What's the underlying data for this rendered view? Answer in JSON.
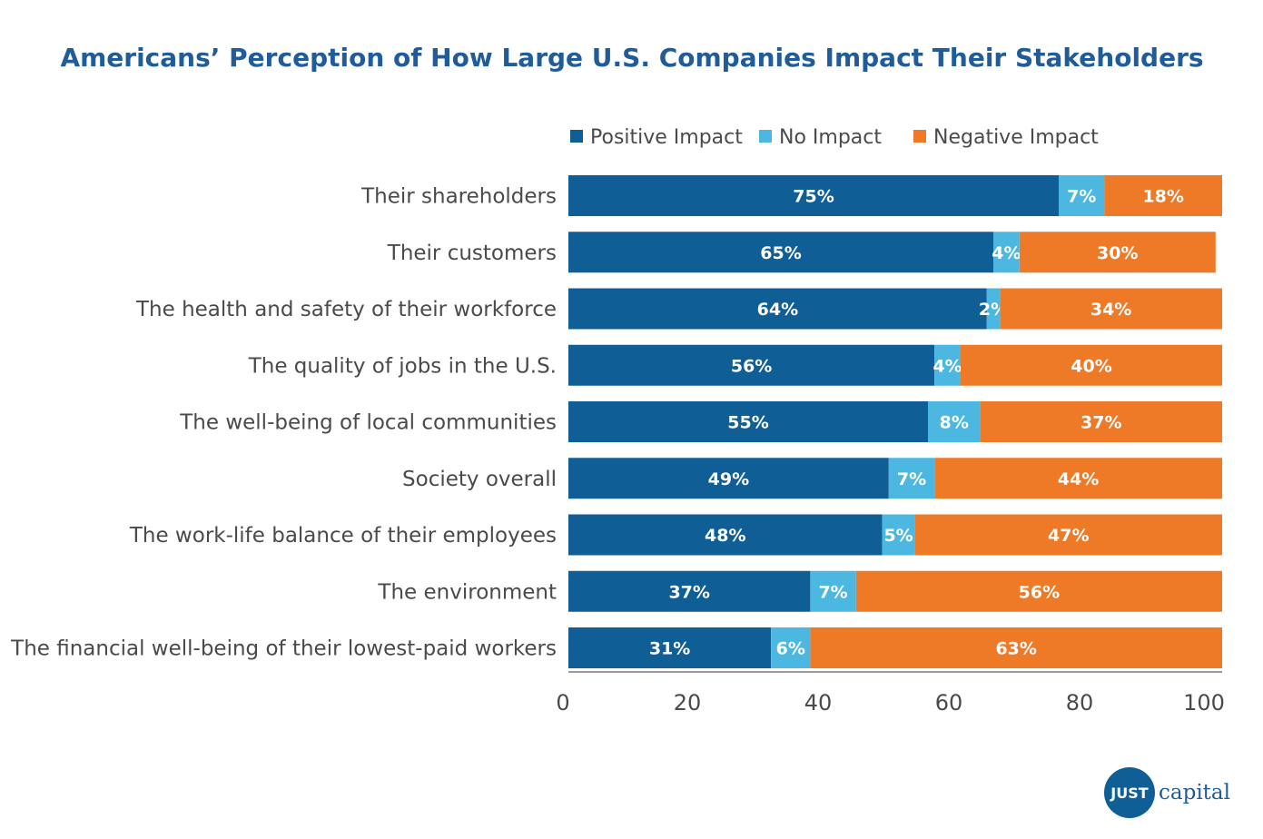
{
  "logo": {
    "word1": "JUST",
    "word2": "capital"
  },
  "colors": {
    "Positive Impact": "#0f5e96",
    "No Impact": "#4cb8e2",
    "Negative Impact": "#ee7a27",
    "title": "#1f5c99",
    "text": "#4a4a4a",
    "axis": "#7a7a7a"
  },
  "chart_data": {
    "type": "bar",
    "orientation": "horizontal",
    "stacked": true,
    "title": "Americans’ Perception of How Large U.S. Companies Impact Their Stakeholders",
    "legend_position": "top-right",
    "grid": false,
    "xlim": [
      0,
      100
    ],
    "xticks": [
      0,
      20,
      40,
      60,
      80,
      100
    ],
    "categories": [
      "Their shareholders",
      "Their customers",
      "The health and safety of their workforce",
      "The quality of jobs in the U.S.",
      "The well-being of local communities",
      "Society overall",
      "The work-life balance of their employees",
      "The environment",
      "The financial well-being of their lowest-paid workers"
    ],
    "series": [
      {
        "name": "Positive Impact",
        "values": [
          75,
          65,
          64,
          56,
          55,
          49,
          48,
          37,
          31
        ]
      },
      {
        "name": "No Impact",
        "values": [
          7,
          4,
          2,
          4,
          8,
          7,
          5,
          7,
          6
        ]
      },
      {
        "name": "Negative Impact",
        "values": [
          18,
          30,
          34,
          40,
          37,
          44,
          47,
          56,
          63
        ]
      }
    ]
  }
}
